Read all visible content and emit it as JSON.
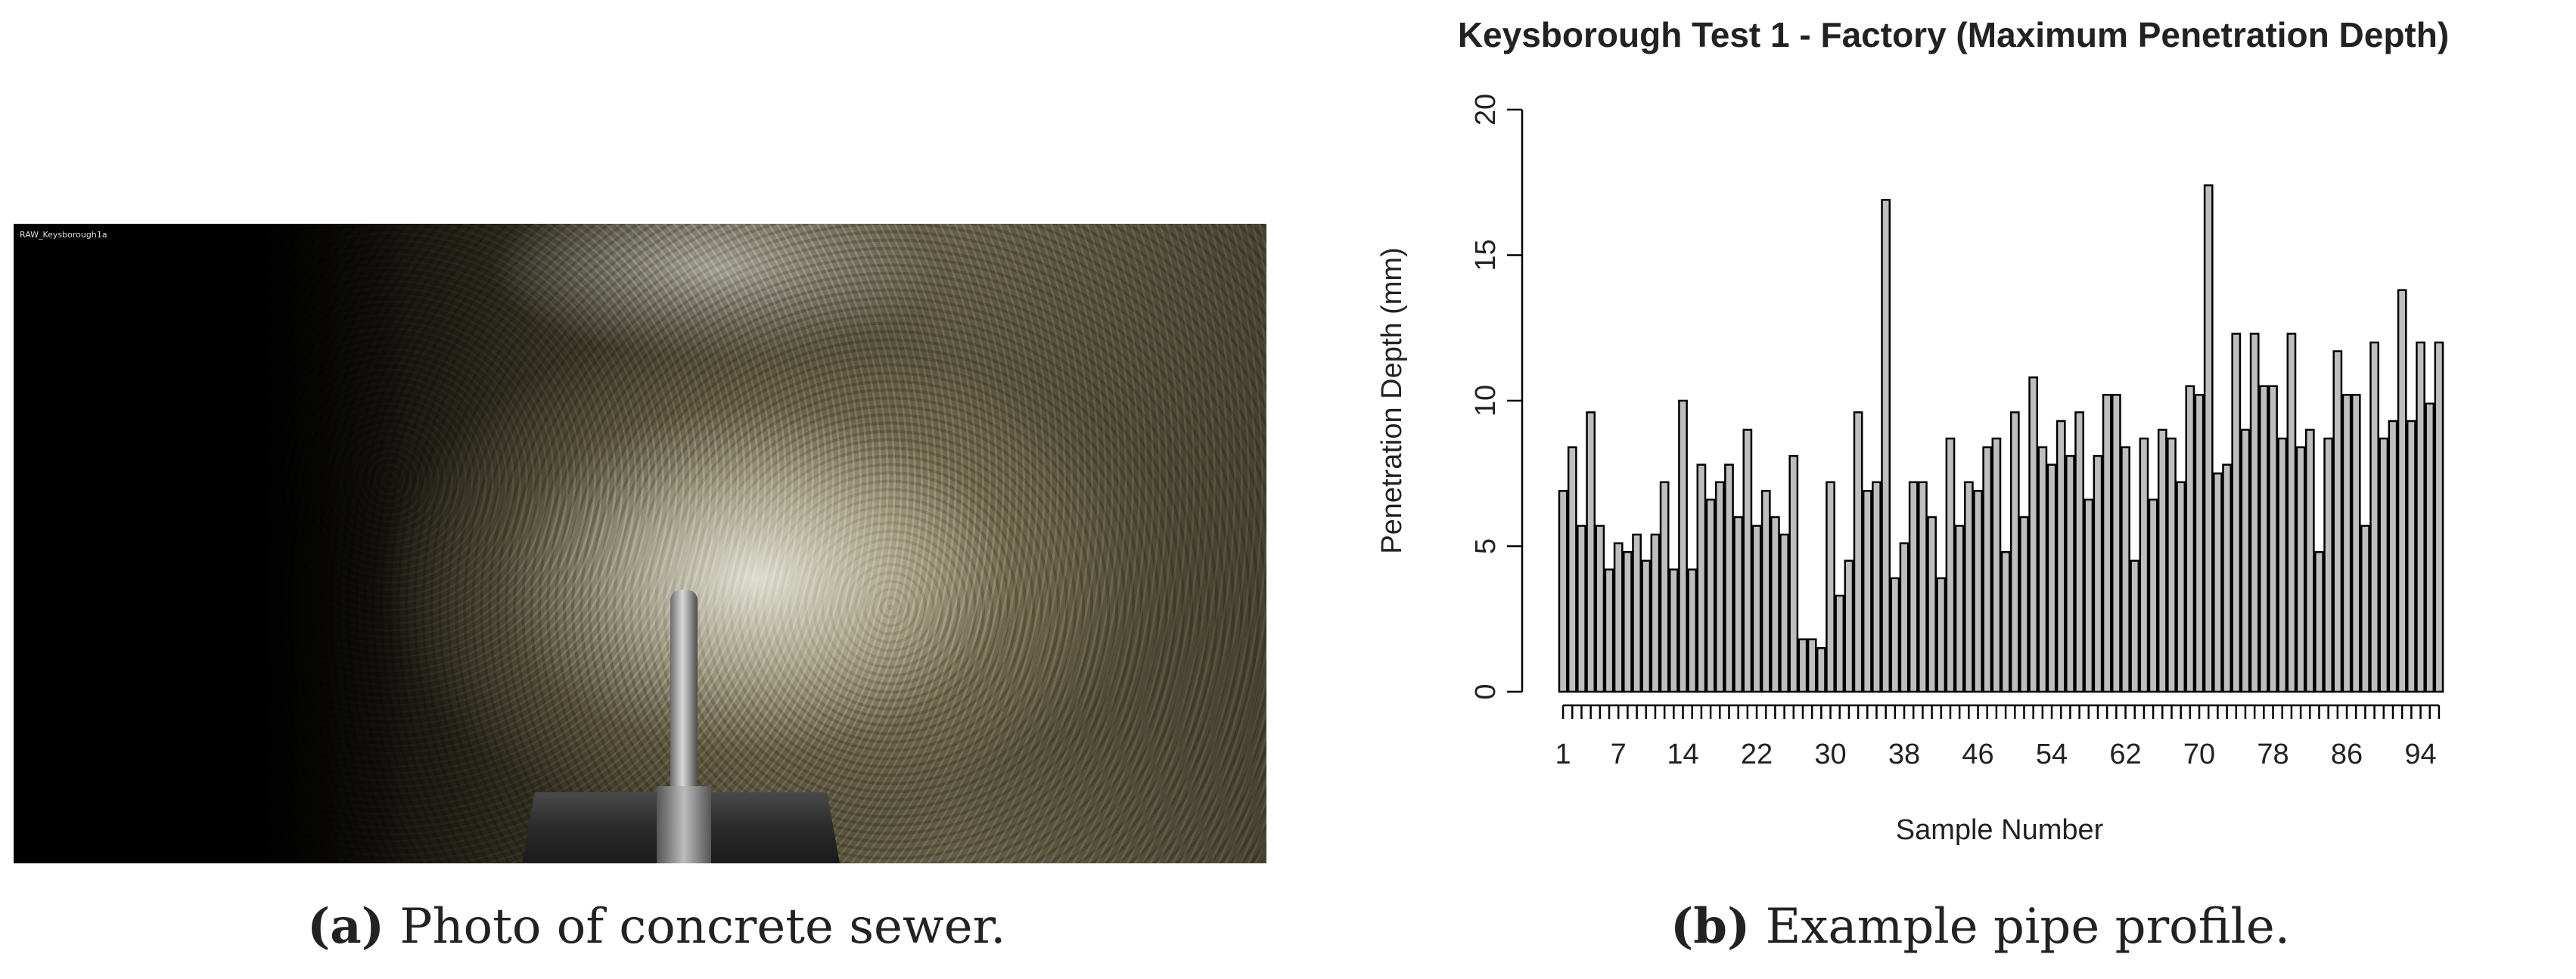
{
  "panel_a": {
    "photo_stamp": "RAW_Keysborough1a",
    "caption_letter": "(a)",
    "caption_text": "Photo of concrete sewer."
  },
  "panel_b": {
    "caption_letter": "(b)",
    "caption_text": "Example pipe profile."
  },
  "chart_data": {
    "type": "bar",
    "title": "Keysborough Test 1 - Factory (Maximum Penetration Depth)",
    "xlabel": "Sample Number",
    "ylabel": "Penetration Depth (mm)",
    "ylim": [
      0,
      20
    ],
    "yticks": [
      0,
      5,
      10,
      15,
      20
    ],
    "xtick_labels": [
      "1",
      "7",
      "14",
      "22",
      "30",
      "38",
      "46",
      "54",
      "62",
      "70",
      "78",
      "86",
      "94"
    ],
    "xtick_positions": [
      1,
      7,
      14,
      22,
      30,
      38,
      46,
      54,
      62,
      70,
      78,
      86,
      94
    ],
    "grid": false,
    "bar_color": "#bebebe",
    "values": [
      6.9,
      8.4,
      5.7,
      9.6,
      5.7,
      4.2,
      5.1,
      4.8,
      5.4,
      4.5,
      5.4,
      7.2,
      4.2,
      10.0,
      4.2,
      7.8,
      6.6,
      7.2,
      7.8,
      6.0,
      9.0,
      5.7,
      6.9,
      6.0,
      5.4,
      8.1,
      1.8,
      1.8,
      1.5,
      7.2,
      3.3,
      4.5,
      9.6,
      6.9,
      7.2,
      16.9,
      3.9,
      5.1,
      7.2,
      7.2,
      6.0,
      3.9,
      8.7,
      5.7,
      7.2,
      6.9,
      8.4,
      8.7,
      4.8,
      9.6,
      6.0,
      10.8,
      8.4,
      7.8,
      9.3,
      8.1,
      9.6,
      6.6,
      8.1,
      10.2,
      10.2,
      8.4,
      4.5,
      8.7,
      6.6,
      9.0,
      8.7,
      7.2,
      10.5,
      10.2,
      17.4,
      7.5,
      7.8,
      12.3,
      9.0,
      12.3,
      10.5,
      10.5,
      8.7,
      12.3,
      8.4,
      9.0,
      4.8,
      8.7,
      11.7,
      10.2,
      10.2,
      5.7,
      12.0,
      8.7,
      9.3,
      13.8,
      9.3,
      12.0,
      9.9,
      12.0
    ]
  }
}
